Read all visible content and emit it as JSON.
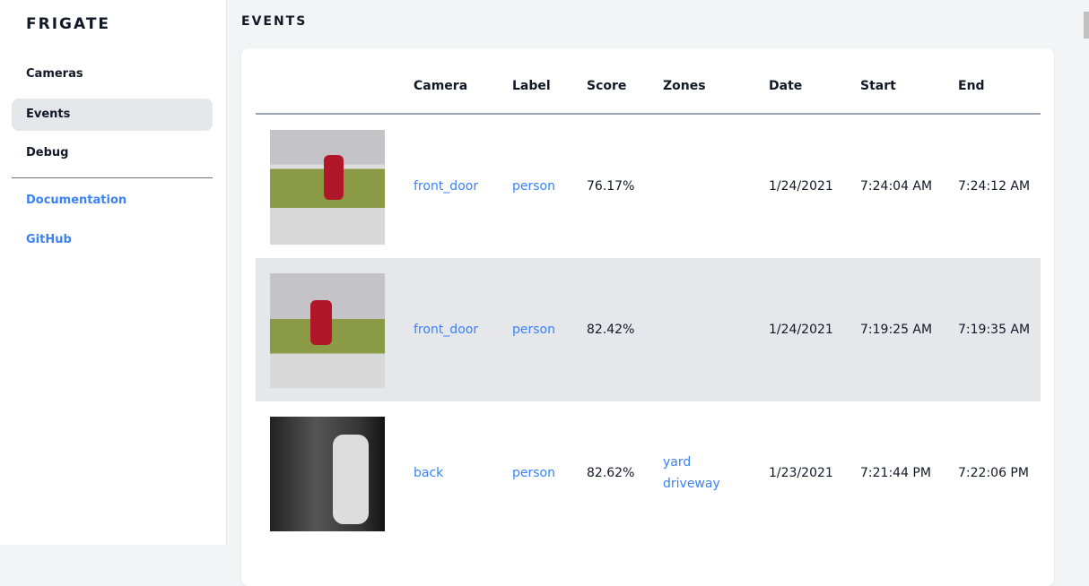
{
  "sidebar": {
    "brand": "FRIGATE",
    "items": [
      {
        "label": "Cameras"
      },
      {
        "label": "Events",
        "active": true
      },
      {
        "label": "Debug"
      }
    ],
    "links": [
      {
        "label": "Documentation"
      },
      {
        "label": "GitHub"
      }
    ]
  },
  "page": {
    "title": "EVENTS"
  },
  "table": {
    "headers": [
      "Camera",
      "Label",
      "Score",
      "Zones",
      "Date",
      "Start",
      "End"
    ],
    "rows": [
      {
        "camera": "front_door",
        "label": "person",
        "score": "76.17%",
        "zones": [
          "",
          ""
        ],
        "date": "1/24/2021",
        "start": "7:24:04 AM",
        "end": "7:24:12 AM"
      },
      {
        "camera": "front_door",
        "label": "person",
        "score": "82.42%",
        "zones": [
          "",
          ""
        ],
        "date": "1/24/2021",
        "start": "7:19:25 AM",
        "end": "7:19:35 AM"
      },
      {
        "camera": "back",
        "label": "person",
        "score": "82.62%",
        "zones": [
          "yard",
          "driveway"
        ],
        "date": "1/23/2021",
        "start": "7:21:44 PM",
        "end": "7:22:06 PM"
      }
    ]
  },
  "colors": {
    "accent": "#3b82f6",
    "active_bg": "#e5e7eb",
    "page_bg": "#f3f4f6"
  }
}
